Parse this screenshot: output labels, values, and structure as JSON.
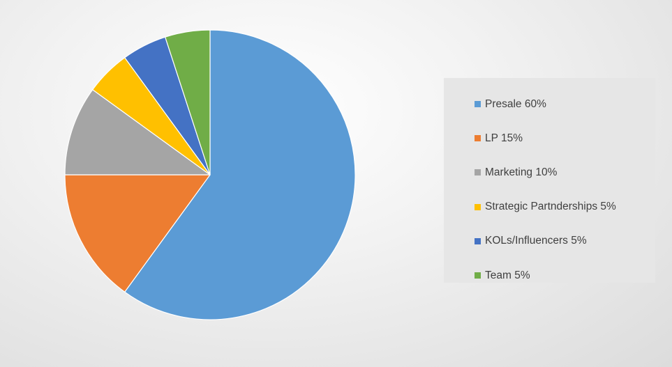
{
  "chart_data": {
    "type": "pie",
    "start_angle_deg": 0,
    "direction": "clockwise",
    "legend_position": "right",
    "slices": [
      {
        "label": "Presale 60%",
        "value": 60,
        "color": "#5B9BD5"
      },
      {
        "label": "LP 15%",
        "value": 15,
        "color": "#ED7D31"
      },
      {
        "label": "Marketing 10%",
        "value": 10,
        "color": "#A5A5A5"
      },
      {
        "label": "Strategic Partnderships 5%",
        "value": 5,
        "color": "#FFC000"
      },
      {
        "label": "KOLs/Influencers 5%",
        "value": 5,
        "color": "#4472C4"
      },
      {
        "label": "Team 5%",
        "value": 5,
        "color": "#70AD47"
      }
    ]
  }
}
